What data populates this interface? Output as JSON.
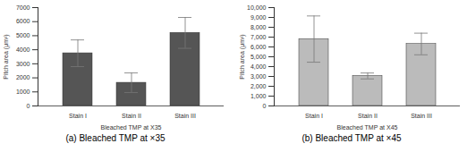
{
  "chart_data": [
    {
      "type": "bar",
      "caption": "(a) Bleached TMP at ×35",
      "xlabel": "Bleached TMP at X35",
      "ylabel": "Pitch area (μm²)",
      "categories": [
        "Stain I",
        "Stain II",
        "Stain III"
      ],
      "values": [
        3750,
        1650,
        5200
      ],
      "errors": [
        950,
        700,
        1100
      ],
      "color": "#555555",
      "ylim": [
        0,
        7000
      ],
      "yticks": [
        0,
        1000,
        2000,
        3000,
        4000,
        5000,
        6000,
        7000
      ],
      "grid": false
    },
    {
      "type": "bar",
      "caption": "(b) Bleached TMP at ×45",
      "xlabel": "Bleached TMP at X45",
      "ylabel": "Pitch area (μm²)",
      "categories": [
        "Stain I",
        "Stain II",
        "Stain III"
      ],
      "values": [
        6800,
        3050,
        6300
      ],
      "errors": [
        2350,
        300,
        1100
      ],
      "color": "#bbbbbb",
      "ylim": [
        0,
        10000
      ],
      "yticks": [
        0,
        {
          "value": 1000,
          "label": "1,000"
        },
        {
          "value": 2000,
          "label": "2,000"
        },
        {
          "value": 3000,
          "label": "3,000"
        },
        {
          "value": 4000,
          "label": "4,000"
        },
        {
          "value": 5000,
          "label": "5,000"
        },
        {
          "value": 6000,
          "label": "6,000"
        },
        {
          "value": 7000,
          "label": "7,000"
        },
        {
          "value": 8000,
          "label": "8,000"
        },
        {
          "value": 9000,
          "label": "9,000"
        },
        {
          "value": 10000,
          "label": "10,000"
        }
      ],
      "grid": false
    }
  ]
}
